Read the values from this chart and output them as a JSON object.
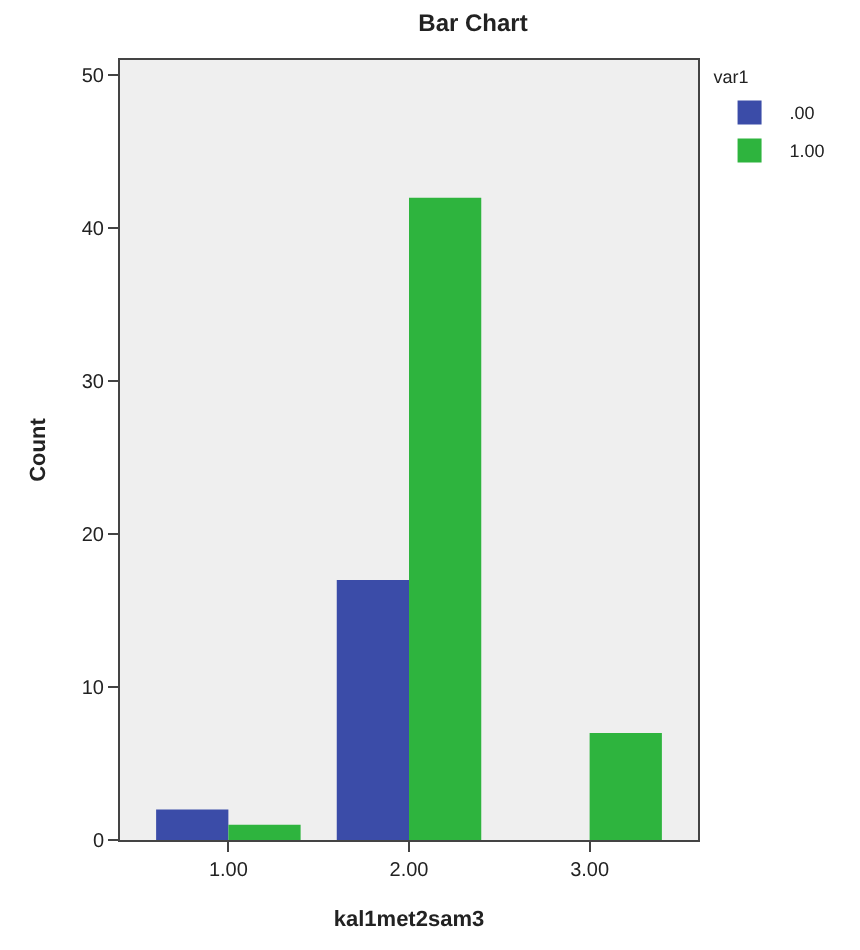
{
  "chart_data": {
    "type": "bar",
    "title": "Bar Chart",
    "xlabel": "kal1met2sam3",
    "ylabel": "Count",
    "legend_title": "var1",
    "categories": [
      "1.00",
      "2.00",
      "3.00"
    ],
    "series": [
      {
        "name": ".00",
        "color": "#3b4ca8",
        "values": [
          2,
          17,
          0
        ]
      },
      {
        "name": "1.00",
        "color": "#2eb43e",
        "values": [
          1,
          42,
          7
        ]
      }
    ],
    "ylim": [
      0,
      51
    ],
    "yticks": [
      0,
      10,
      20,
      30,
      40,
      50
    ],
    "grid": false,
    "legend": "top right"
  }
}
